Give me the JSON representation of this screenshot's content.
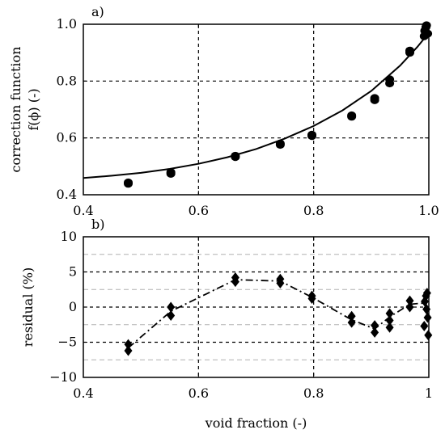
{
  "chart_data": [
    {
      "type": "scatter",
      "panel_label": "a)",
      "xlabel": "",
      "ylabel_lines": [
        "correction function",
        "f(ϕ) (-)"
      ],
      "xlim": [
        0.4,
        1.0
      ],
      "ylim": [
        0.4,
        1.0
      ],
      "xticks": [
        0.4,
        0.6,
        0.8,
        1.0
      ],
      "xtick_labels": [
        "0.4",
        "0.6",
        "0.8",
        "1.0"
      ],
      "yticks": [
        0.4,
        0.6,
        0.8,
        1.0
      ],
      "ytick_labels": [
        "0.4",
        "0.6",
        "0.8",
        "1.0"
      ],
      "grid": "dashed at major ticks",
      "series": [
        {
          "marker": "circle",
          "points": [
            [
              0.478,
              0.443
            ],
            [
              0.478,
              0.439
            ],
            [
              0.552,
              0.479
            ],
            [
              0.552,
              0.474
            ],
            [
              0.664,
              0.537
            ],
            [
              0.664,
              0.533
            ],
            [
              0.742,
              0.58
            ],
            [
              0.742,
              0.576
            ],
            [
              0.797,
              0.611
            ],
            [
              0.797,
              0.607
            ],
            [
              0.866,
              0.679
            ],
            [
              0.866,
              0.675
            ],
            [
              0.906,
              0.74
            ],
            [
              0.906,
              0.733
            ],
            [
              0.932,
              0.806
            ],
            [
              0.932,
              0.792
            ],
            [
              0.967,
              0.907
            ],
            [
              0.967,
              0.9
            ],
            [
              0.992,
              0.958
            ],
            [
              0.993,
              0.977
            ],
            [
              0.995,
              0.99
            ],
            [
              0.996,
              0.996
            ],
            [
              0.998,
              0.967
            ]
          ]
        },
        {
          "line": "solid",
          "curve": [
            [
              0.4,
              0.459
            ],
            [
              0.45,
              0.467
            ],
            [
              0.5,
              0.477
            ],
            [
              0.55,
              0.491
            ],
            [
              0.6,
              0.509
            ],
            [
              0.65,
              0.532
            ],
            [
              0.7,
              0.561
            ],
            [
              0.75,
              0.598
            ],
            [
              0.8,
              0.642
            ],
            [
              0.85,
              0.697
            ],
            [
              0.9,
              0.765
            ],
            [
              0.95,
              0.854
            ],
            [
              0.98,
              0.92
            ],
            [
              1.0,
              0.97
            ]
          ]
        }
      ]
    },
    {
      "type": "scatter",
      "panel_label": "b)",
      "xlabel": "void fraction (-)",
      "ylabel": "residual (%)",
      "xlim": [
        0.4,
        1.0
      ],
      "ylim": [
        -10,
        10
      ],
      "xticks": [
        0.4,
        0.6,
        0.8,
        1.0
      ],
      "xtick_labels": [
        "0.4",
        "0.6",
        "0.8",
        "1"
      ],
      "yticks": [
        -10,
        -5,
        0,
        5,
        10
      ],
      "ytick_labels": [
        "−10",
        "−5",
        "0",
        "5",
        "10"
      ],
      "minor_grid_y": [
        -7.5,
        -2.5,
        2.5,
        7.5
      ],
      "grid": "dashed at major ticks, light dashed at minor",
      "series": [
        {
          "marker": "diamond",
          "line": "dash-dot",
          "points": [
            [
              0.478,
              -5.3
            ],
            [
              0.478,
              -6.2
            ],
            [
              0.552,
              0.0
            ],
            [
              0.552,
              -1.2
            ],
            [
              0.664,
              4.2
            ],
            [
              0.664,
              3.6
            ],
            [
              0.742,
              4.0
            ],
            [
              0.742,
              3.4
            ],
            [
              0.797,
              1.6
            ],
            [
              0.797,
              1.2
            ],
            [
              0.866,
              -1.3
            ],
            [
              0.866,
              -2.2
            ],
            [
              0.906,
              -2.6
            ],
            [
              0.906,
              -3.6
            ],
            [
              0.932,
              -0.9
            ],
            [
              0.932,
              -1.9
            ],
            [
              0.932,
              -2.9
            ],
            [
              0.967,
              0.9
            ],
            [
              0.967,
              0.0
            ],
            [
              0.992,
              -2.7
            ],
            [
              0.993,
              0.8
            ],
            [
              0.995,
              1.6
            ],
            [
              0.996,
              -0.3
            ],
            [
              0.997,
              2.0
            ],
            [
              0.998,
              -1.5
            ],
            [
              0.999,
              -4.0
            ]
          ],
          "trend": [
            [
              0.478,
              -5.8
            ],
            [
              0.552,
              -0.6
            ],
            [
              0.664,
              3.9
            ],
            [
              0.742,
              3.7
            ],
            [
              0.797,
              1.4
            ],
            [
              0.866,
              -1.8
            ],
            [
              0.906,
              -3.1
            ],
            [
              0.932,
              -1.4
            ],
            [
              0.967,
              0.4
            ],
            [
              0.995,
              0.6
            ],
            [
              0.999,
              -1.2
            ]
          ]
        }
      ]
    }
  ]
}
